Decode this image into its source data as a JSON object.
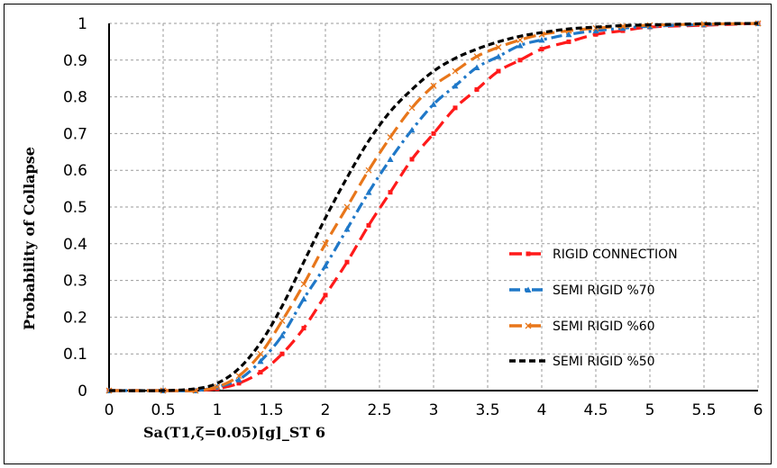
{
  "chart_data": {
    "type": "line",
    "title": "",
    "xlabel": "Sa(T1,ζ=0.05)[g]_ST 6",
    "ylabel": "Probability of Collapse",
    "xlim": [
      0,
      6
    ],
    "ylim": [
      0,
      1
    ],
    "x_ticks": [
      "0",
      "0.5",
      "1",
      "1.5",
      "2",
      "2.5",
      "3",
      "3.5",
      "4",
      "4.5",
      "5",
      "5.5",
      "6"
    ],
    "y_ticks": [
      "0",
      "0.1",
      "0.2",
      "0.3",
      "0.4",
      "0.5",
      "0.6",
      "0.7",
      "0.8",
      "0.9",
      "1"
    ],
    "grid": true,
    "legend_position": "bottom-right",
    "x": [
      0,
      0.5,
      0.8,
      1.0,
      1.2,
      1.4,
      1.6,
      1.8,
      2.0,
      2.2,
      2.4,
      2.6,
      2.8,
      3.0,
      3.2,
      3.4,
      3.6,
      3.8,
      4.0,
      4.25,
      4.5,
      4.75,
      5.0,
      5.5,
      6.0
    ],
    "series": [
      {
        "name": "RIGID CONNECTION",
        "color": "#ff1a1a",
        "dash": "long-dash",
        "marker": "square",
        "values": [
          0,
          0,
          0,
          0.005,
          0.02,
          0.05,
          0.1,
          0.17,
          0.26,
          0.35,
          0.45,
          0.54,
          0.63,
          0.7,
          0.77,
          0.82,
          0.87,
          0.9,
          0.93,
          0.95,
          0.97,
          0.98,
          0.99,
          0.995,
          1.0
        ]
      },
      {
        "name": "SEMI RIGID %70",
        "color": "#1f78c8",
        "dash": "dash-dot",
        "marker": "triangle",
        "values": [
          0,
          0,
          0,
          0.01,
          0.03,
          0.08,
          0.15,
          0.25,
          0.34,
          0.44,
          0.54,
          0.63,
          0.71,
          0.78,
          0.83,
          0.88,
          0.91,
          0.94,
          0.955,
          0.97,
          0.98,
          0.987,
          0.992,
          0.997,
          1.0
        ]
      },
      {
        "name": "SEMI RIGID %60",
        "color": "#e8761a",
        "dash": "long-dash",
        "marker": "x",
        "values": [
          0,
          0,
          0,
          0.01,
          0.04,
          0.1,
          0.19,
          0.29,
          0.4,
          0.5,
          0.6,
          0.69,
          0.77,
          0.83,
          0.87,
          0.91,
          0.935,
          0.955,
          0.97,
          0.98,
          0.987,
          0.992,
          0.995,
          0.998,
          1.0
        ]
      },
      {
        "name": "SEMI RIGID %50",
        "color": "#000000",
        "dash": "short-dash",
        "marker": "none",
        "values": [
          0,
          0,
          0.005,
          0.02,
          0.06,
          0.13,
          0.23,
          0.35,
          0.47,
          0.58,
          0.68,
          0.76,
          0.82,
          0.87,
          0.905,
          0.93,
          0.95,
          0.965,
          0.975,
          0.985,
          0.99,
          0.994,
          0.996,
          0.999,
          1.0
        ]
      }
    ]
  }
}
